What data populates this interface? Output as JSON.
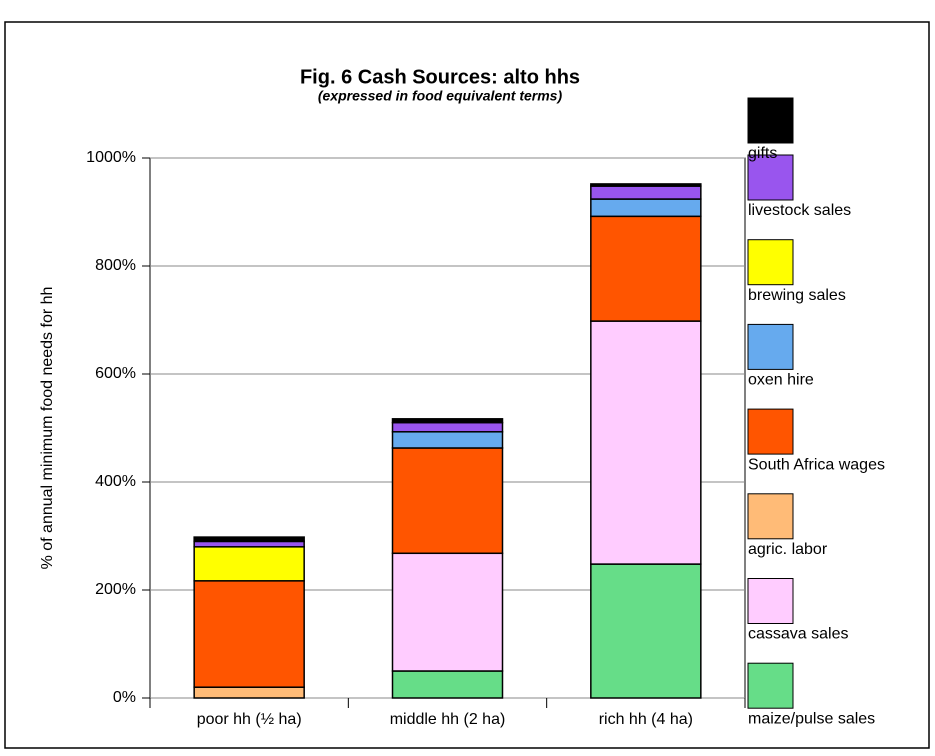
{
  "chart_data": {
    "type": "stacked-bar",
    "title": "Fig. 6 Cash Sources: alto hhs",
    "subtitle": "(expressed in food equivalent terms)",
    "y_label": "% of annual minimum food needs for hh",
    "categories": [
      "poor hh (½ ha)",
      "middle hh (2 ha)",
      "rich hh (4 ha)"
    ],
    "series": [
      {
        "name": "maize/pulse sales",
        "color": "#66dd88",
        "values": [
          0,
          50,
          248
        ]
      },
      {
        "name": "cassava sales",
        "color": "#ffccff",
        "values": [
          0,
          218,
          450
        ]
      },
      {
        "name": "agric. labor",
        "color": "#ffbb77",
        "values": [
          20,
          0,
          0
        ]
      },
      {
        "name": "South Africa wages",
        "color": "#ff5500",
        "values": [
          197,
          195,
          194
        ]
      },
      {
        "name": "oxen hire",
        "color": "#66aaee",
        "values": [
          0,
          30,
          32
        ]
      },
      {
        "name": "brewing sales",
        "color": "#ffff00",
        "values": [
          63,
          0,
          0
        ]
      },
      {
        "name": "livestock sales",
        "color": "#9955ee",
        "values": [
          10,
          17,
          24
        ]
      },
      {
        "name": "gifts",
        "color": "#000000",
        "values": [
          8,
          7,
          4
        ]
      }
    ],
    "ylim": [
      0,
      1000
    ],
    "yticks": [
      {
        "value": 0,
        "label": "0%"
      },
      {
        "value": 200,
        "label": "200%"
      },
      {
        "value": 400,
        "label": "400%"
      },
      {
        "value": 600,
        "label": "600%"
      },
      {
        "value": 800,
        "label": "800%"
      },
      {
        "value": 1000,
        "label": "1000%"
      }
    ],
    "grid": true
  }
}
